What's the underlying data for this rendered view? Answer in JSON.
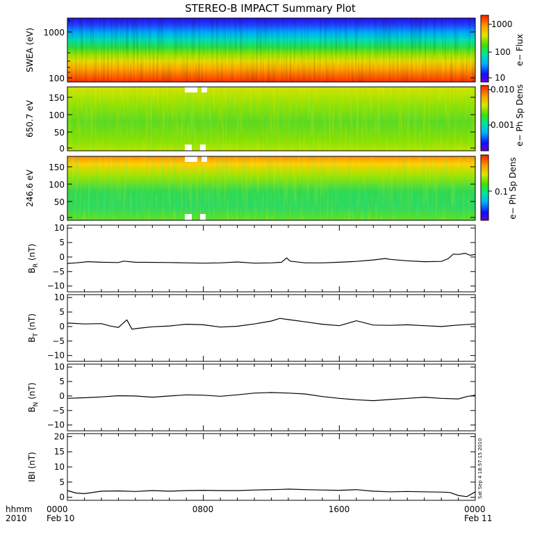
{
  "chart_data": {
    "type": "line",
    "title": "STEREO-B IMPACT Summary Plot",
    "x_axis": {
      "corner_labels": [
        "hhmm",
        "2010"
      ],
      "ticks": [
        {
          "hhmm": "0000",
          "date": "Feb 10"
        },
        {
          "hhmm": "0800",
          "date": ""
        },
        {
          "hhmm": "1600",
          "date": ""
        },
        {
          "hhmm": "0000",
          "date": "Feb 11"
        }
      ],
      "range_hours": [
        0,
        24
      ]
    },
    "stamp": "Sat Sep  4 18:57:15 2010",
    "spectrograms": [
      {
        "ylabel": "SWEA (eV)",
        "yscale": "log",
        "ylim": [
          100,
          1900
        ],
        "yticks": [
          "1000",
          "100"
        ],
        "colorbar_label": "e− Flux",
        "colorbar_ticks": [
          "1000",
          "100",
          "10"
        ],
        "colorbar_scale": "log",
        "colorbar_range": [
          5,
          2000
        ]
      },
      {
        "ylabel": "650.7 eV",
        "yscale": "linear",
        "ylim": [
          0,
          180
        ],
        "yticks": [
          "150",
          "100",
          "50",
          "0"
        ],
        "colorbar_label": "e− Ph Sp Dens",
        "colorbar_ticks": [
          "0.010",
          "0.001"
        ],
        "colorbar_scale": "log",
        "colorbar_range": [
          0.0001,
          0.012
        ]
      },
      {
        "ylabel": "246.6 eV",
        "yscale": "linear",
        "ylim": [
          0,
          180
        ],
        "yticks": [
          "150",
          "100",
          "50",
          "0"
        ],
        "colorbar_label": "e− Ph Sp Dens",
        "colorbar_ticks": [
          "0.1"
        ],
        "colorbar_scale": "log",
        "colorbar_range": [
          0.01,
          0.6
        ]
      }
    ],
    "line_panels": [
      {
        "ylabel": "B",
        "ylabel_sub": "R",
        "ylabel_unit": "(nT)",
        "ylim": [
          -12,
          11
        ],
        "yticks": [
          "10",
          "5",
          "0",
          "−5",
          "−10"
        ],
        "series": [
          {
            "x": [
              0,
              0.5,
              1.2,
              2,
              3,
              3.3,
              4,
              6,
              7,
              8,
              9,
              10,
              11,
              12,
              12.6,
              12.9,
              13.1,
              14,
              15,
              16,
              17,
              18,
              18.7,
              19,
              20,
              21,
              22,
              22.4,
              22.7,
              23,
              23.4,
              23.7,
              24
            ],
            "y": [
              -2.2,
              -2.0,
              -1.6,
              -1.8,
              -1.9,
              -1.4,
              -1.8,
              -1.9,
              -2.0,
              -2.1,
              -2.0,
              -1.7,
              -2.1,
              -2.0,
              -1.8,
              -0.3,
              -1.4,
              -2.0,
              -2.0,
              -1.8,
              -1.5,
              -1.0,
              -0.5,
              -0.8,
              -1.3,
              -1.6,
              -1.5,
              -0.6,
              1.0,
              0.9,
              1.3,
              0.6,
              0.9
            ]
          }
        ]
      },
      {
        "ylabel": "B",
        "ylabel_sub": "T",
        "ylabel_unit": "(nT)",
        "ylim": [
          -12,
          11
        ],
        "yticks": [
          "10",
          "5",
          "0",
          "−5",
          "−10"
        ],
        "series": [
          {
            "x": [
              0,
              1,
              2,
              2.5,
              3,
              3.5,
              3.8,
              4.2,
              5,
              6,
              7,
              8,
              9,
              10,
              11,
              12,
              12.5,
              13,
              14,
              15,
              16,
              17,
              18,
              19,
              20,
              21,
              22,
              23,
              24
            ],
            "y": [
              1.2,
              0.9,
              1.0,
              0.2,
              -0.3,
              2.3,
              -0.9,
              -0.6,
              -0.1,
              0.2,
              0.8,
              0.6,
              -0.2,
              0.1,
              0.9,
              1.9,
              2.8,
              2.4,
              1.6,
              0.8,
              0.3,
              2.0,
              0.5,
              0.4,
              0.6,
              0.3,
              0.0,
              0.5,
              0.9
            ]
          }
        ]
      },
      {
        "ylabel": "B",
        "ylabel_sub": "N",
        "ylabel_unit": "(nT)",
        "ylim": [
          -12,
          11
        ],
        "yticks": [
          "10",
          "5",
          "0",
          "−5",
          "−10"
        ],
        "series": [
          {
            "x": [
              0,
              1,
              2,
              3,
              4,
              5,
              6,
              7,
              8,
              9,
              10,
              11,
              12,
              13,
              14,
              15,
              16,
              17,
              18,
              19,
              20,
              21,
              22,
              23,
              23.5,
              24
            ],
            "y": [
              -0.8,
              -0.6,
              -0.3,
              0.1,
              0.0,
              -0.4,
              0.0,
              0.4,
              0.3,
              -0.1,
              0.4,
              1.0,
              1.2,
              1.0,
              0.7,
              -0.2,
              -0.8,
              -1.3,
              -1.6,
              -1.2,
              -0.8,
              -0.4,
              -0.8,
              -1.0,
              -0.2,
              0.3
            ]
          }
        ]
      },
      {
        "ylabel": "IBI",
        "ylabel_sub": "",
        "ylabel_unit": "(nT)",
        "ylim": [
          -1,
          21
        ],
        "yticks": [
          "20",
          "15",
          "10",
          "5",
          "0"
        ],
        "series": [
          {
            "x": [
              0,
              0.5,
              1,
              2,
              3,
              4,
              5,
              6,
              7,
              8,
              9,
              10,
              11,
              12,
              12.6,
              13,
              14,
              15,
              16,
              17,
              18,
              19,
              20,
              21,
              22,
              22.5,
              23,
              23.5,
              24
            ],
            "y": [
              2.2,
              1.4,
              1.2,
              2.0,
              2.1,
              1.9,
              2.2,
              2.0,
              2.2,
              2.3,
              2.2,
              2.2,
              2.4,
              2.5,
              2.6,
              2.7,
              2.5,
              2.4,
              2.3,
              2.5,
              2.0,
              1.8,
              1.9,
              1.8,
              1.7,
              1.6,
              0.6,
              0.2,
              1.8
            ]
          }
        ]
      }
    ]
  }
}
